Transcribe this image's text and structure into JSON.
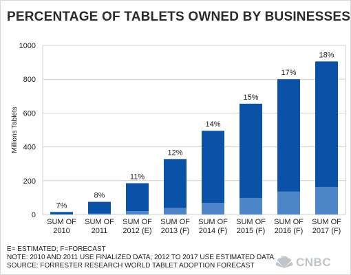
{
  "chart_data": {
    "type": "bar",
    "title": "PERCENTAGE OF TABLETS OWNED BY BUSINESSES",
    "ylabel": "Millions Tablets",
    "xlabel": "",
    "ylim": [
      0,
      1000
    ],
    "yticks": [
      "0",
      "200",
      "400",
      "600",
      "800",
      "1000"
    ],
    "categories": [
      [
        "SUM OF",
        "2010"
      ],
      [
        "SUM OF",
        "2011"
      ],
      [
        "SUM OF",
        "2012 (E)"
      ],
      [
        "SUM OF",
        "2013 (F)"
      ],
      [
        "SUM OF",
        "2014 (F)"
      ],
      [
        "SUM OF",
        "2015 (F)"
      ],
      [
        "SUM OF",
        "2016 (F)"
      ],
      [
        "SUM OF",
        "2017 (F)"
      ]
    ],
    "total_values": [
      15,
      75,
      185,
      328,
      495,
      655,
      800,
      905
    ],
    "business_values": [
      1,
      6,
      20,
      39,
      69,
      98,
      136,
      163
    ],
    "data_labels": [
      "7%",
      "8%",
      "11%",
      "12%",
      "14%",
      "15%",
      "17%",
      "18%"
    ],
    "grid": true,
    "colors": {
      "total": "#0a52a8",
      "business": "#4c86c9",
      "grid": "#cfcfcf",
      "plot_bg": "#ffffff"
    }
  },
  "footer": {
    "line1": "E= ESTIMATED; F=FORECAST",
    "line2": "NOTE: 2010 AND 2011 USE FINALIZED DATA; 2012 TO 2017 USE ESTIMATED DATA.",
    "line3": "SOURCE: FORRESTER RESEARCH WORLD TABLET ADOPTION FORECAST"
  },
  "brand": {
    "name": "CNBC",
    "icon": "peacock-icon"
  }
}
